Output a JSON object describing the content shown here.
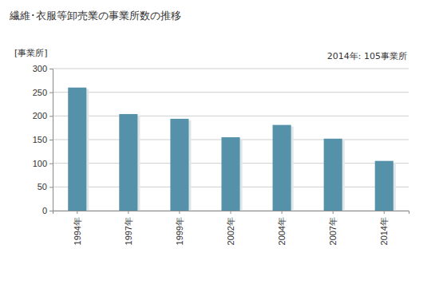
{
  "chart_data": {
    "type": "bar",
    "title": "繊維･衣服等卸売業の事業所数の推移",
    "y_label": "[事業所]",
    "annotation": "2014年: 105事業所",
    "categories": [
      "1994年",
      "1997年",
      "1999年",
      "2002年",
      "2004年",
      "2007年",
      "2014年"
    ],
    "values": [
      260,
      204,
      194,
      155,
      181,
      152,
      105
    ],
    "color": "#5591a9",
    "ylim": [
      0,
      300
    ],
    "yticks": [
      0,
      50,
      100,
      150,
      200,
      250,
      300
    ],
    "grid": true
  }
}
